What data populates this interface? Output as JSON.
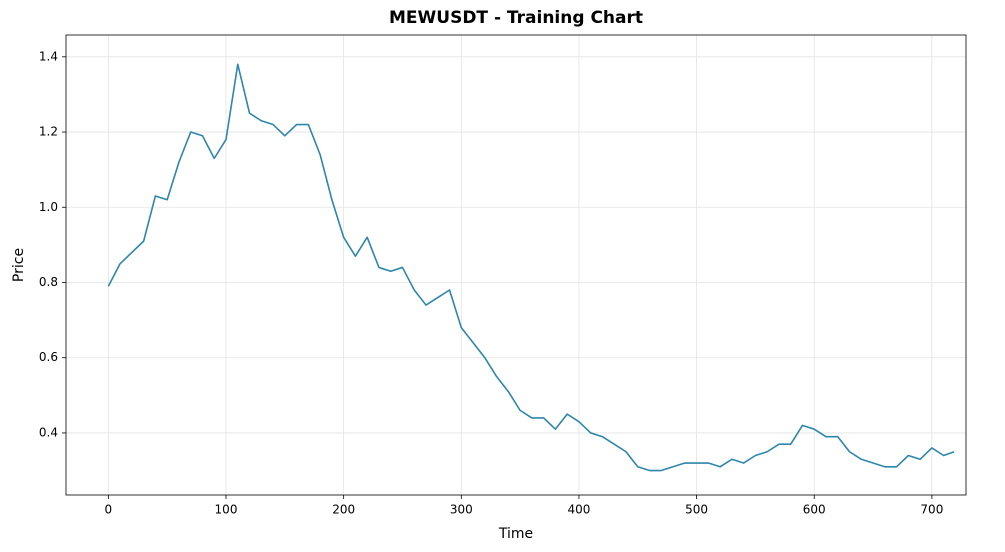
{
  "chart_data": {
    "type": "line",
    "title": "MEWUSDT - Training Chart",
    "x_label": "Time",
    "y_label": "Price",
    "x": [
      0,
      10,
      20,
      30,
      40,
      50,
      60,
      70,
      80,
      90,
      100,
      110,
      120,
      130,
      140,
      150,
      160,
      170,
      180,
      190,
      200,
      210,
      220,
      230,
      240,
      250,
      260,
      270,
      280,
      290,
      300,
      310,
      320,
      330,
      340,
      350,
      360,
      370,
      380,
      390,
      400,
      410,
      420,
      430,
      440,
      450,
      460,
      470,
      480,
      490,
      500,
      510,
      520,
      530,
      540,
      550,
      560,
      570,
      580,
      590,
      600,
      610,
      620,
      630,
      640,
      650,
      660,
      670,
      680,
      690,
      700,
      710,
      719
    ],
    "values": [
      0.79,
      0.85,
      0.88,
      0.91,
      1.03,
      1.02,
      1.12,
      1.2,
      1.19,
      1.13,
      1.18,
      1.38,
      1.25,
      1.23,
      1.22,
      1.19,
      1.22,
      1.22,
      1.14,
      1.02,
      0.92,
      0.87,
      0.92,
      0.84,
      0.83,
      0.84,
      0.78,
      0.74,
      0.76,
      0.78,
      0.68,
      0.64,
      0.6,
      0.55,
      0.51,
      0.46,
      0.44,
      0.44,
      0.41,
      0.45,
      0.43,
      0.4,
      0.39,
      0.37,
      0.35,
      0.31,
      0.3,
      0.3,
      0.31,
      0.32,
      0.32,
      0.32,
      0.31,
      0.33,
      0.32,
      0.34,
      0.35,
      0.37,
      0.37,
      0.42,
      0.41,
      0.39,
      0.39,
      0.35,
      0.33,
      0.32,
      0.31,
      0.31,
      0.34,
      0.33,
      0.36,
      0.34,
      0.35
    ],
    "color": "#2e86ab",
    "xlim": [
      -36,
      729
    ],
    "ylim": [
      0.235,
      1.458
    ],
    "xticks": [
      0,
      100,
      200,
      300,
      400,
      500,
      600,
      700
    ],
    "yticks": [
      0.4,
      0.6,
      0.8,
      {
        "value": 1.0,
        "label": "1.0"
      },
      1.2,
      1.4
    ],
    "grid": true
  }
}
